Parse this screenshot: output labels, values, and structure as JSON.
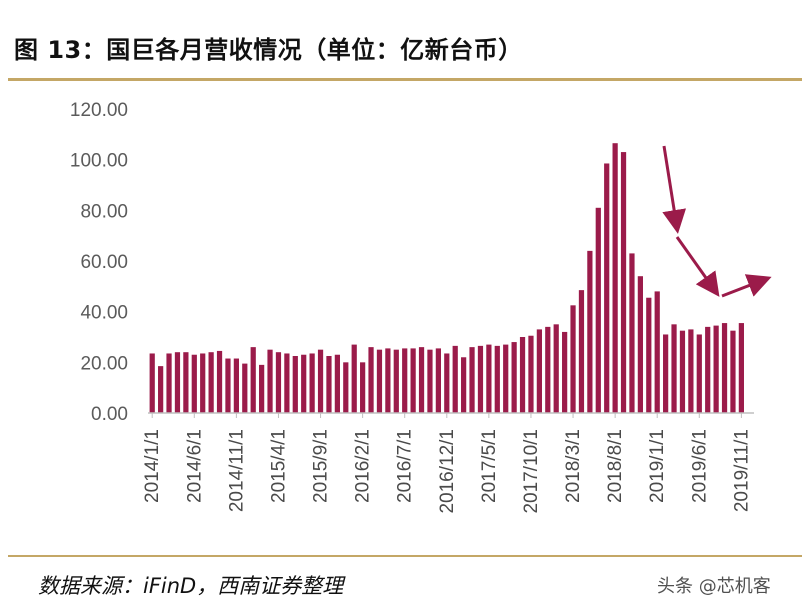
{
  "title": "图 13：国巨各月营收情况（单位：亿新台币）",
  "source": "数据来源：iFinD，西南证券整理",
  "watermark": "头条 @芯机客",
  "colors": {
    "bar": "#9b1b4a",
    "arrow": "#9b1b4a",
    "rule": "#c4a766",
    "axis": "#bfbfbf"
  },
  "chart_data": {
    "type": "bar",
    "title": "图 13：国巨各月营收情况（单位：亿新台币）",
    "ylim": [
      0,
      120
    ],
    "yticks": [
      "0.00",
      "20.00",
      "40.00",
      "60.00",
      "80.00",
      "100.00",
      "120.00"
    ],
    "xtick_labels": [
      "2014/1/1",
      "2014/6/1",
      "2014/11/1",
      "2015/4/1",
      "2015/9/1",
      "2016/2/1",
      "2016/7/1",
      "2016/12/1",
      "2017/5/1",
      "2017/10/1",
      "2018/3/1",
      "2018/8/1",
      "2019/1/1",
      "2019/6/1",
      "2019/11/1"
    ],
    "grid": false,
    "legend": "none",
    "series": [
      {
        "x": [
          "2014/1",
          "2014/2",
          "2014/3",
          "2014/4",
          "2014/5",
          "2014/6",
          "2014/7",
          "2014/8",
          "2014/9",
          "2014/10",
          "2014/11",
          "2014/12",
          "2015/1",
          "2015/2",
          "2015/3",
          "2015/4",
          "2015/5",
          "2015/6",
          "2015/7",
          "2015/8",
          "2015/9",
          "2015/10",
          "2015/11",
          "2015/12",
          "2016/1",
          "2016/2",
          "2016/3",
          "2016/4",
          "2016/5",
          "2016/6",
          "2016/7",
          "2016/8",
          "2016/9",
          "2016/10",
          "2016/11",
          "2016/12",
          "2017/1",
          "2017/2",
          "2017/3",
          "2017/4",
          "2017/5",
          "2017/6",
          "2017/7",
          "2017/8",
          "2017/9",
          "2017/10",
          "2017/11",
          "2017/12",
          "2018/1",
          "2018/2",
          "2018/3",
          "2018/4",
          "2018/5",
          "2018/6",
          "2018/7",
          "2018/8",
          "2018/9",
          "2018/10",
          "2018/11",
          "2018/12",
          "2019/1",
          "2019/2",
          "2019/3",
          "2019/4",
          "2019/5",
          "2019/6",
          "2019/7",
          "2019/8",
          "2019/9",
          "2019/10",
          "2019/11",
          "2019/12"
        ],
        "values": [
          23.5,
          18.5,
          23.5,
          24,
          24,
          23,
          23.5,
          24,
          24.5,
          21.5,
          21.5,
          19.5,
          26,
          19,
          25,
          24,
          23.5,
          22.5,
          23,
          23.5,
          25,
          22.5,
          23,
          20,
          27,
          20,
          26,
          25,
          25.5,
          25,
          25.5,
          25.5,
          26,
          25,
          25.5,
          23.5,
          26.5,
          22,
          26,
          26.5,
          27,
          26.5,
          27,
          28,
          30,
          30.5,
          33,
          34,
          35,
          32,
          42.5,
          48.5,
          64,
          81,
          98.5,
          106.5,
          103,
          63,
          54,
          45.5,
          48,
          31,
          35,
          32.5,
          33,
          31,
          34,
          34.5,
          35.5,
          32.5,
          35.5,
          0
        ]
      }
    ],
    "annotations": [
      "down-arrow",
      "down-arrow",
      "up-arrow"
    ]
  }
}
